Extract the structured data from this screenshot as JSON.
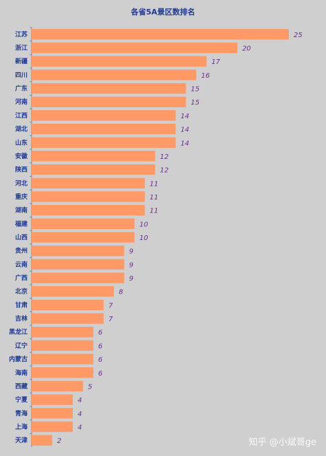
{
  "chart_data": {
    "type": "bar",
    "orientation": "horizontal",
    "title": "各省5A景区数排名",
    "categories": [
      "江苏",
      "浙江",
      "新疆",
      "四川",
      "广东",
      "河南",
      "江西",
      "湖北",
      "山东",
      "安徽",
      "陕西",
      "河北",
      "重庆",
      "湖南",
      "福建",
      "山西",
      "贵州",
      "云南",
      "广西",
      "北京",
      "甘肃",
      "吉林",
      "黑龙江",
      "辽宁",
      "内蒙古",
      "海南",
      "西藏",
      "宁夏",
      "青海",
      "上海",
      "天津"
    ],
    "values": [
      25,
      20,
      17,
      16,
      15,
      15,
      14,
      14,
      14,
      12,
      12,
      11,
      11,
      11,
      10,
      10,
      9,
      9,
      9,
      8,
      7,
      7,
      6,
      6,
      6,
      6,
      5,
      4,
      4,
      4,
      2
    ],
    "xlim": [
      0,
      25
    ],
    "bar_color": "#ff9966",
    "grid": false,
    "legend": "none"
  },
  "watermark": "知乎 @小斌哥ge"
}
